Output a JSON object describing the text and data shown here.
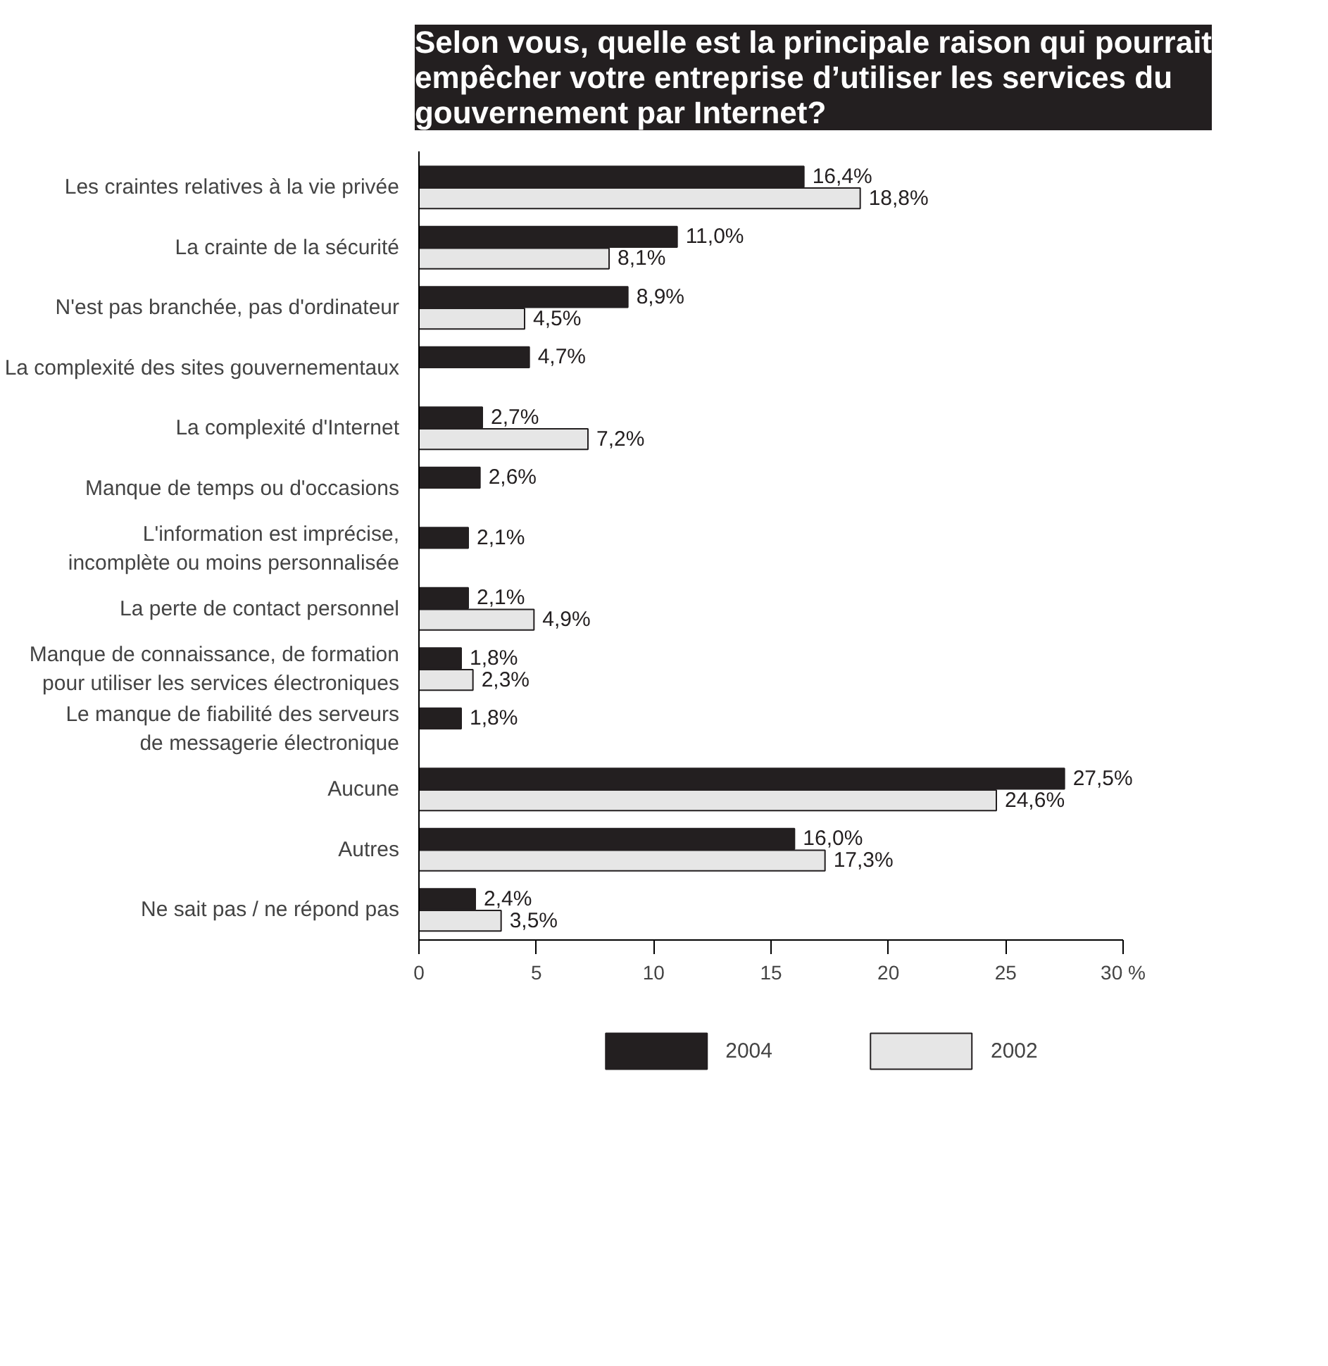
{
  "chart_data": {
    "type": "bar",
    "orientation": "horizontal",
    "title": "Selon vous, quelle est la principale raison qui pourrait\nempêcher votre entreprise d’utiliser les services du\ngouvernement par Internet?",
    "categories": [
      "Les craintes relatives à la vie privée",
      "La crainte de la sécurité",
      "N'est pas branchée, pas d'ordinateur",
      "La complexité des sites gouvernementaux",
      "La complexité d'Internet",
      "Manque de temps ou d'occasions",
      "L'information est imprécise,\nincomplète ou moins personnalisée",
      "La perte de contact personnel",
      "Manque de connaissance, de formation\npour utiliser les services électroniques",
      "Le manque de fiabilité des serveurs\nde messagerie électronique",
      "Aucune",
      "Autres",
      "Ne sait pas / ne répond pas"
    ],
    "series": [
      {
        "name": "2004",
        "color": "#231f20",
        "values": [
          16.4,
          11.0,
          8.9,
          4.7,
          2.7,
          2.6,
          2.1,
          2.1,
          1.8,
          1.8,
          27.5,
          16.0,
          2.4
        ],
        "value_labels": [
          "16,4%",
          "11,0%",
          "8,9%",
          "4,7%",
          "2,7%",
          "2,6%",
          "2,1%",
          "2,1%",
          "1,8%",
          "1,8%",
          "27,5%",
          "16,0%",
          "2,4%"
        ]
      },
      {
        "name": "2002",
        "color": "#e6e6e6",
        "values": [
          18.8,
          8.1,
          4.5,
          null,
          7.2,
          null,
          null,
          4.9,
          2.3,
          null,
          24.6,
          17.3,
          3.5
        ],
        "value_labels": [
          "18,8%",
          "8,1%",
          "4,5%",
          null,
          "7,2%",
          null,
          null,
          "4,9%",
          "2,3%",
          null,
          "24,6%",
          "17,3%",
          "3,5%"
        ]
      }
    ],
    "xlim": [
      0,
      30
    ],
    "xticks": [
      0,
      5,
      10,
      15,
      20,
      25,
      {
        "value": 30,
        "label": "30 %"
      }
    ],
    "grid": false,
    "legend": "bottom"
  }
}
